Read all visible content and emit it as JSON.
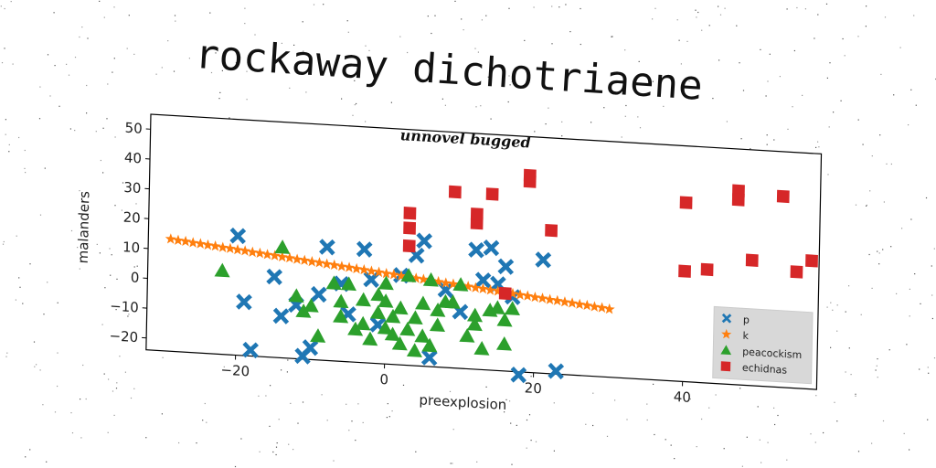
{
  "title": "rockaway dichotriaene",
  "chart_data": {
    "type": "scatter",
    "subtitle": "unnovel bugged",
    "xlabel": "preexplosion",
    "ylabel": "malanders",
    "xlim": [
      -32,
      58
    ],
    "ylim": [
      -24,
      55
    ],
    "xticks": [
      -20,
      0,
      20,
      40
    ],
    "yticks": [
      -20,
      -10,
      0,
      10,
      20,
      30,
      40,
      50
    ],
    "legend_position": "lower-right",
    "series": [
      {
        "name": "p",
        "marker": "x",
        "color": "#1f77b4",
        "points": [
          [
            -20,
            16
          ],
          [
            -19,
            -6
          ],
          [
            -18,
            -22
          ],
          [
            -15,
            3
          ],
          [
            -14,
            -10
          ],
          [
            -12,
            -6
          ],
          [
            -11,
            -23
          ],
          [
            -10,
            -20
          ],
          [
            -9,
            -2
          ],
          [
            -8,
            14
          ],
          [
            -6,
            2
          ],
          [
            -5,
            -8
          ],
          [
            -3,
            14
          ],
          [
            -2,
            4
          ],
          [
            -1,
            -11
          ],
          [
            2,
            6
          ],
          [
            4,
            13
          ],
          [
            5,
            18
          ],
          [
            6,
            -21
          ],
          [
            8,
            2
          ],
          [
            10,
            -5
          ],
          [
            12,
            16
          ],
          [
            13,
            6
          ],
          [
            14,
            17
          ],
          [
            15,
            5
          ],
          [
            16,
            11
          ],
          [
            17,
            1
          ],
          [
            18,
            -25
          ],
          [
            21,
            14
          ],
          [
            23,
            -23
          ]
        ]
      },
      {
        "name": "k",
        "marker": "*",
        "color": "#ff7f0e",
        "points": [
          [
            -29,
            13.6
          ],
          [
            -28,
            13.3
          ],
          [
            -27,
            13.1
          ],
          [
            -26,
            12.8
          ],
          [
            -25,
            12.6
          ],
          [
            -24,
            12.3
          ],
          [
            -23,
            12.1
          ],
          [
            -22,
            11.8
          ],
          [
            -21,
            11.6
          ],
          [
            -20,
            11.3
          ],
          [
            -19,
            11.1
          ],
          [
            -18,
            10.8
          ],
          [
            -17,
            10.6
          ],
          [
            -16,
            10.3
          ],
          [
            -15,
            10.1
          ],
          [
            -14,
            9.8
          ],
          [
            -13,
            9.6
          ],
          [
            -12,
            9.3
          ],
          [
            -11,
            9.1
          ],
          [
            -10,
            8.8
          ],
          [
            -9,
            8.6
          ],
          [
            -8,
            8.3
          ],
          [
            -7,
            8.1
          ],
          [
            -6,
            7.8
          ],
          [
            -5,
            7.6
          ],
          [
            -4,
            7.3
          ],
          [
            -3,
            7.1
          ],
          [
            -2,
            6.8
          ],
          [
            -1,
            6.6
          ],
          [
            0,
            6.3
          ],
          [
            1,
            6.1
          ],
          [
            2,
            5.8
          ],
          [
            3,
            5.6
          ],
          [
            4,
            5.3
          ],
          [
            5,
            5.1
          ],
          [
            6,
            4.8
          ],
          [
            7,
            4.6
          ],
          [
            8,
            4.3
          ],
          [
            9,
            4.1
          ],
          [
            10,
            3.8
          ],
          [
            11,
            3.6
          ],
          [
            12,
            3.3
          ],
          [
            13,
            3.1
          ],
          [
            14,
            2.8
          ],
          [
            15,
            2.6
          ],
          [
            16,
            2.3
          ],
          [
            17,
            2.1
          ],
          [
            18,
            1.8
          ],
          [
            19,
            1.6
          ],
          [
            20,
            1.3
          ],
          [
            21,
            1.1
          ],
          [
            22,
            0.8
          ],
          [
            23,
            0.6
          ],
          [
            24,
            0.3
          ],
          [
            25,
            0.1
          ],
          [
            26,
            -0.2
          ],
          [
            27,
            -0.4
          ],
          [
            28,
            -0.7
          ],
          [
            29,
            -0.9
          ],
          [
            30,
            -1.2
          ]
        ]
      },
      {
        "name": "peacockism",
        "marker": "^",
        "color": "#2ca02c",
        "points": [
          [
            -22,
            4
          ],
          [
            -14,
            13
          ],
          [
            -12,
            -3
          ],
          [
            -11,
            -8
          ],
          [
            -10,
            -6
          ],
          [
            -9,
            -16
          ],
          [
            -7,
            2
          ],
          [
            -6,
            -4
          ],
          [
            -6,
            -9
          ],
          [
            -5,
            2
          ],
          [
            -4,
            -13
          ],
          [
            -3,
            -11
          ],
          [
            -3,
            -3
          ],
          [
            -2,
            -16
          ],
          [
            -1,
            -1
          ],
          [
            -1,
            -7
          ],
          [
            0,
            -3
          ],
          [
            0,
            3
          ],
          [
            0,
            -12
          ],
          [
            1,
            -14
          ],
          [
            1,
            -8
          ],
          [
            2,
            -5
          ],
          [
            2,
            -17
          ],
          [
            3,
            6
          ],
          [
            3,
            -12
          ],
          [
            4,
            -19
          ],
          [
            4,
            -8
          ],
          [
            5,
            -14
          ],
          [
            5,
            -3
          ],
          [
            6,
            -17
          ],
          [
            6,
            5
          ],
          [
            7,
            -5
          ],
          [
            7,
            -10
          ],
          [
            8,
            -2
          ],
          [
            9,
            -2
          ],
          [
            10,
            4
          ],
          [
            11,
            -13
          ],
          [
            12,
            -9
          ],
          [
            12,
            -6
          ],
          [
            13,
            -17
          ],
          [
            14,
            -4
          ],
          [
            15,
            -3
          ],
          [
            16,
            -7
          ],
          [
            16,
            -15
          ],
          [
            17,
            -3
          ]
        ]
      },
      {
        "name": "echidnas",
        "marker": "s",
        "color": "#d62728",
        "points": [
          [
            3,
            27
          ],
          [
            3,
            22
          ],
          [
            3,
            16
          ],
          [
            9,
            35
          ],
          [
            12,
            25
          ],
          [
            12,
            28
          ],
          [
            14,
            35
          ],
          [
            16,
            2
          ],
          [
            19,
            42
          ],
          [
            19,
            40
          ],
          [
            22,
            24
          ],
          [
            40,
            36
          ],
          [
            40,
            13
          ],
          [
            43,
            14
          ],
          [
            47,
            41
          ],
          [
            47,
            38
          ],
          [
            49,
            18
          ],
          [
            53,
            40
          ],
          [
            55,
            15
          ],
          [
            57,
            19
          ]
        ]
      }
    ]
  }
}
